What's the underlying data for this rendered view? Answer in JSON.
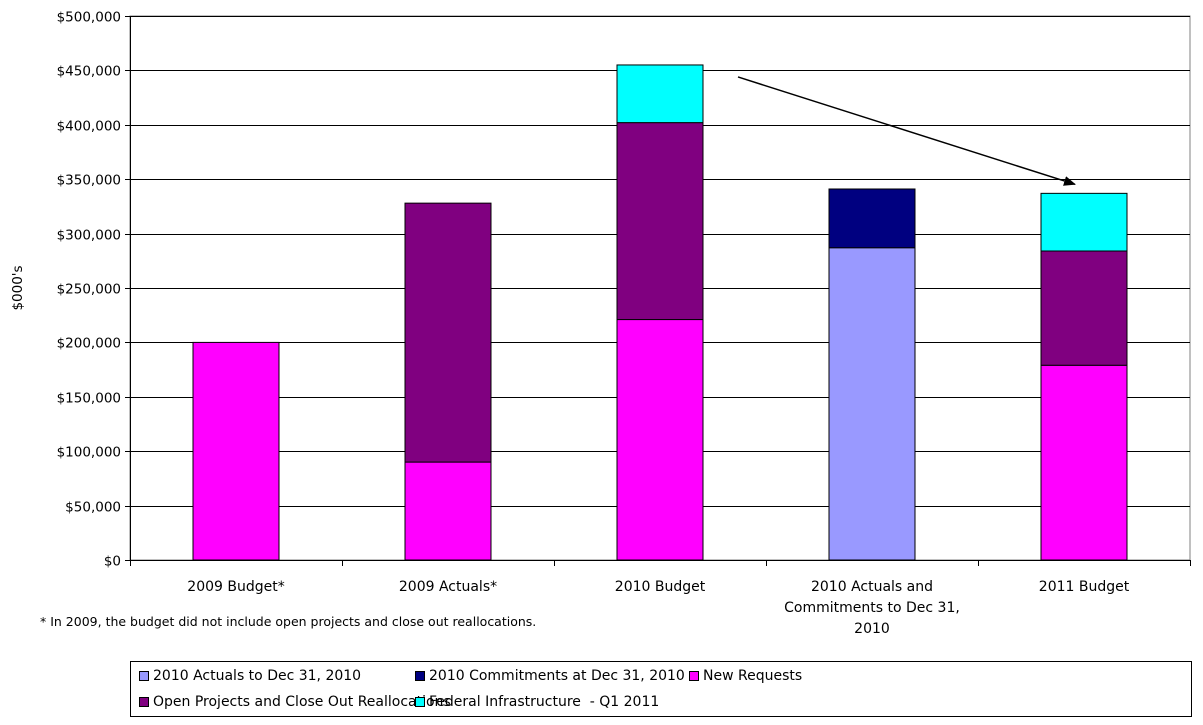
{
  "chart_data": {
    "type": "bar",
    "stacked": true,
    "ylabel": "$000's",
    "ylim": [
      0,
      500000
    ],
    "ytick_step": 50000,
    "ytick_labels": [
      "$0",
      "$50,000",
      "$100,000",
      "$150,000",
      "$200,000",
      "$250,000",
      "$300,000",
      "$350,000",
      "$400,000",
      "$450,000",
      "$500,000"
    ],
    "categories": [
      "2009 Budget*",
      "2009 Actuals*",
      "2010 Budget",
      "2010 Actuals and Commitments to Dec 31, 2010",
      "2011 Budget"
    ],
    "category_lines": [
      [
        "2009 Budget*"
      ],
      [
        "2009 Actuals*"
      ],
      [
        "2010 Budget"
      ],
      [
        "2010 Actuals and",
        "Commitments to Dec 31,",
        "2010"
      ],
      [
        "2011 Budget"
      ]
    ],
    "series": [
      {
        "name": "2010 Actuals to Dec 31, 2010",
        "color": "#9999FF",
        "values": [
          0,
          0,
          0,
          287000,
          0
        ]
      },
      {
        "name": "2010 Commitments at Dec 31, 2010",
        "color": "#000080",
        "values": [
          0,
          0,
          0,
          54000,
          0
        ]
      },
      {
        "name": "New Requests",
        "color": "#FF00FF",
        "values": [
          200000,
          90000,
          221000,
          0,
          179000
        ]
      },
      {
        "name": "Open Projects and Close Out Reallocations",
        "color": "#800080",
        "values": [
          0,
          238000,
          181000,
          0,
          105000
        ]
      },
      {
        "name": "Federal Infrastructure  - Q1 2011",
        "color": "#00FFFF",
        "values": [
          0,
          0,
          53000,
          0,
          53000
        ]
      }
    ],
    "grid": true,
    "legend_position": "bottom",
    "annotations": [
      {
        "type": "arrow",
        "from_category": "2010 Budget",
        "to_category": "2011 Budget"
      }
    ]
  },
  "footnote": "* In 2009, the budget did not include open projects and close out reallocations."
}
